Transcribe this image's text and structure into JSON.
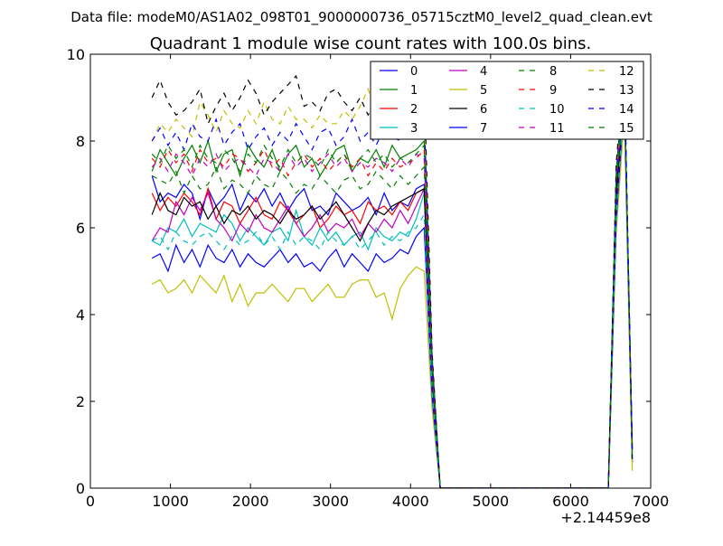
{
  "header": {
    "datafile_label": "Data file: modeM0/AS1A02_098T01_9000000736_05715cztM0_level2_quad_clean.evt"
  },
  "chart_data": {
    "type": "line",
    "title": "Quadrant 1 module wise count rates with 100.0s bins.",
    "xlabel": "",
    "ylabel": "",
    "x_offset_label": "+2.14459e8",
    "xlim": [
      0,
      7000
    ],
    "ylim": [
      0,
      10
    ],
    "x_ticks": [
      0,
      1000,
      2000,
      3000,
      4000,
      5000,
      6000,
      7000
    ],
    "y_ticks": [
      0,
      2,
      4,
      6,
      8,
      10
    ],
    "grid": false,
    "legend_position": "top-right",
    "legend_columns": 4,
    "x": [
      770,
      870,
      970,
      1070,
      1170,
      1270,
      1370,
      1470,
      1570,
      1670,
      1770,
      1870,
      1970,
      2070,
      2170,
      2270,
      2370,
      2470,
      2570,
      2670,
      2770,
      2870,
      2970,
      3070,
      3170,
      3270,
      3370,
      3470,
      3570,
      3670,
      3770,
      3870,
      3970,
      4070,
      4170,
      4270,
      4370,
      6470,
      6570,
      6670,
      6770
    ],
    "series": [
      {
        "name": "0",
        "color": "#0000ff",
        "style": "solid",
        "values": [
          7.2,
          6.6,
          6.8,
          6.7,
          7.0,
          6.8,
          6.2,
          6.9,
          6.5,
          6.7,
          7.0,
          6.4,
          6.8,
          6.6,
          6.9,
          6.5,
          6.8,
          6.4,
          6.7,
          6.9,
          6.4,
          6.5,
          6.3,
          6.8,
          6.6,
          6.4,
          6.5,
          6.7,
          6.3,
          6.8,
          6.4,
          6.6,
          6.5,
          6.9,
          7.0,
          2.5,
          0.0,
          0.0,
          6.8,
          9.2,
          1.0
        ]
      },
      {
        "name": "1",
        "color": "#008000",
        "style": "solid",
        "values": [
          7.3,
          7.8,
          7.5,
          7.2,
          7.6,
          7.9,
          7.5,
          8.0,
          7.3,
          7.7,
          7.8,
          7.2,
          7.9,
          7.6,
          7.4,
          7.8,
          7.3,
          7.7,
          7.9,
          7.4,
          7.6,
          7.2,
          7.5,
          7.8,
          7.9,
          7.3,
          7.6,
          7.5,
          7.8,
          7.4,
          7.9,
          7.6,
          7.7,
          7.8,
          8.0,
          2.8,
          0.0,
          0.0,
          7.1,
          9.4,
          0.9
        ]
      },
      {
        "name": "2",
        "color": "#ff0000",
        "style": "solid",
        "values": [
          6.8,
          6.4,
          6.7,
          6.5,
          6.8,
          6.6,
          6.3,
          6.9,
          6.2,
          6.6,
          6.5,
          6.1,
          6.4,
          6.7,
          6.3,
          6.2,
          6.6,
          6.4,
          6.1,
          6.3,
          6.5,
          6.0,
          6.2,
          6.5,
          6.3,
          6.4,
          6.1,
          6.6,
          6.4,
          6.5,
          6.3,
          6.6,
          6.4,
          6.8,
          6.9,
          2.4,
          0.0,
          0.0,
          6.6,
          9.1,
          0.8
        ]
      },
      {
        "name": "3",
        "color": "#00bfbf",
        "style": "solid",
        "values": [
          5.7,
          5.6,
          6.0,
          5.9,
          6.2,
          5.8,
          6.1,
          6.0,
          5.9,
          6.3,
          6.1,
          5.7,
          6.0,
          5.8,
          5.6,
          5.9,
          6.0,
          5.7,
          6.4,
          5.8,
          5.6,
          6.0,
          5.7,
          5.9,
          5.6,
          5.8,
          5.9,
          5.5,
          6.0,
          5.8,
          5.7,
          5.9,
          5.8,
          6.2,
          6.8,
          2.3,
          0.0,
          0.0,
          6.5,
          9.3,
          0.7
        ]
      },
      {
        "name": "4",
        "color": "#bf00bf",
        "style": "solid",
        "values": [
          5.7,
          6.0,
          5.9,
          6.6,
          6.3,
          6.7,
          6.4,
          6.8,
          6.2,
          6.0,
          5.7,
          6.1,
          5.9,
          6.3,
          6.0,
          5.9,
          6.2,
          6.5,
          6.1,
          5.8,
          6.0,
          6.3,
          5.9,
          6.1,
          6.0,
          6.2,
          5.8,
          6.1,
          5.9,
          6.2,
          6.0,
          6.4,
          6.1,
          6.5,
          6.9,
          2.2,
          0.0,
          0.0,
          6.4,
          9.0,
          0.6
        ]
      },
      {
        "name": "5",
        "color": "#bfbf00",
        "style": "solid",
        "values": [
          4.7,
          4.8,
          4.5,
          4.6,
          4.8,
          4.5,
          4.9,
          4.7,
          4.5,
          4.9,
          4.3,
          4.7,
          4.2,
          4.5,
          4.5,
          4.7,
          4.5,
          4.3,
          4.6,
          4.6,
          4.3,
          4.5,
          4.7,
          4.4,
          4.4,
          4.7,
          4.8,
          4.8,
          4.4,
          4.5,
          3.9,
          4.6,
          4.9,
          5.1,
          5.0,
          1.8,
          0.0,
          0.0,
          5.9,
          8.6,
          0.4
        ]
      },
      {
        "name": "6",
        "color": "#000000",
        "style": "solid",
        "values": [
          6.3,
          6.8,
          6.4,
          6.3,
          6.7,
          6.5,
          6.6,
          6.2,
          6.5,
          6.1,
          6.4,
          6.3,
          6.5,
          6.2,
          6.4,
          6.3,
          6.1,
          6.4,
          6.2,
          6.3,
          6.5,
          6.2,
          6.4,
          6.6,
          6.3,
          6.0,
          5.7,
          6.1,
          6.4,
          6.3,
          6.5,
          6.6,
          6.7,
          6.8,
          6.9,
          2.6,
          0.0,
          0.0,
          6.7,
          9.2,
          0.9
        ]
      },
      {
        "name": "7",
        "color": "#0000ff",
        "style": "solid",
        "values": [
          5.3,
          5.4,
          5.0,
          5.6,
          5.2,
          5.5,
          5.1,
          5.6,
          5.3,
          5.2,
          5.5,
          5.1,
          5.4,
          5.2,
          5.1,
          5.3,
          5.5,
          5.2,
          5.4,
          5.1,
          5.2,
          5.0,
          5.3,
          5.5,
          5.1,
          5.4,
          5.2,
          5.0,
          5.4,
          5.2,
          5.3,
          5.5,
          5.4,
          5.8,
          6.0,
          2.1,
          0.0,
          0.0,
          6.2,
          9.0,
          0.6
        ]
      },
      {
        "name": "8",
        "color": "#008000",
        "style": "dashed",
        "values": [
          7.2,
          7.1,
          7.0,
          7.3,
          6.8,
          7.2,
          6.9,
          7.0,
          7.4,
          6.9,
          7.1,
          7.0,
          6.8,
          7.2,
          7.0,
          6.9,
          7.3,
          7.1,
          6.8,
          7.0,
          6.9,
          7.2,
          7.0,
          6.8,
          7.1,
          7.2,
          6.9,
          7.0,
          7.3,
          7.1,
          6.9,
          7.2,
          7.0,
          7.2,
          7.4,
          2.7,
          0.0,
          0.0,
          7.0,
          9.3,
          0.8
        ]
      },
      {
        "name": "9",
        "color": "#ff0000",
        "style": "dashed",
        "values": [
          7.6,
          7.4,
          7.8,
          7.5,
          7.7,
          7.3,
          7.8,
          7.5,
          7.6,
          7.4,
          7.7,
          7.6,
          7.3,
          7.5,
          7.8,
          7.4,
          7.6,
          7.2,
          7.5,
          7.7,
          7.4,
          7.6,
          7.3,
          7.5,
          7.7,
          7.4,
          7.6,
          7.2,
          7.5,
          7.3,
          7.6,
          7.4,
          7.5,
          7.6,
          7.8,
          2.9,
          0.0,
          0.0,
          7.2,
          9.4,
          0.9
        ]
      },
      {
        "name": "10",
        "color": "#00bfbf",
        "style": "dashed",
        "values": [
          5.7,
          5.8,
          5.5,
          5.9,
          5.7,
          5.6,
          5.8,
          5.9,
          5.7,
          5.5,
          5.8,
          5.6,
          5.7,
          5.9,
          5.6,
          5.8,
          5.5,
          5.9,
          5.6,
          5.8,
          5.7,
          5.5,
          5.9,
          5.7,
          5.6,
          5.8,
          5.5,
          5.7,
          5.9,
          5.6,
          5.8,
          5.7,
          5.9,
          6.0,
          6.3,
          2.2,
          0.0,
          0.0,
          6.3,
          9.1,
          0.7
        ]
      },
      {
        "name": "11",
        "color": "#bf00bf",
        "style": "dashed",
        "values": [
          7.4,
          7.6,
          7.3,
          7.7,
          7.5,
          7.2,
          7.6,
          7.4,
          7.7,
          7.3,
          7.5,
          7.6,
          7.4,
          7.2,
          7.6,
          7.5,
          7.3,
          7.7,
          7.4,
          7.6,
          7.3,
          7.5,
          7.7,
          7.4,
          7.6,
          7.3,
          7.5,
          7.4,
          7.6,
          7.5,
          7.3,
          7.6,
          7.4,
          7.7,
          7.6,
          2.8,
          0.0,
          0.0,
          7.1,
          9.2,
          0.9
        ]
      },
      {
        "name": "12",
        "color": "#bfbf00",
        "style": "dashed",
        "values": [
          8.0,
          8.4,
          8.2,
          8.5,
          8.3,
          8.1,
          8.9,
          8.6,
          8.2,
          8.7,
          8.4,
          8.3,
          8.7,
          8.4,
          8.9,
          8.5,
          8.4,
          8.8,
          8.5,
          8.5,
          8.3,
          8.6,
          8.4,
          8.4,
          8.7,
          8.5,
          8.8,
          9.2,
          8.6,
          8.9,
          8.4,
          8.7,
          8.5,
          8.8,
          9.0,
          3.0,
          0.0,
          0.0,
          7.4,
          9.5,
          0.5
        ]
      },
      {
        "name": "13",
        "color": "#000000",
        "style": "dashed",
        "values": [
          9.0,
          9.4,
          8.9,
          8.6,
          8.7,
          8.9,
          9.2,
          8.4,
          8.8,
          9.1,
          8.7,
          9.0,
          9.4,
          9.1,
          8.6,
          8.9,
          9.1,
          9.3,
          9.5,
          8.8,
          8.9,
          8.7,
          9.1,
          9.2,
          8.9,
          8.7,
          9.0,
          8.6,
          8.9,
          9.1,
          8.8,
          8.9,
          8.7,
          8.9,
          9.3,
          3.1,
          0.0,
          0.0,
          7.5,
          9.8,
          0.6
        ]
      },
      {
        "name": "14",
        "color": "#0000ff",
        "style": "dashed",
        "values": [
          8.0,
          8.3,
          7.9,
          8.2,
          7.8,
          8.4,
          8.1,
          8.0,
          8.5,
          7.9,
          8.2,
          8.4,
          7.8,
          8.1,
          8.3,
          7.9,
          8.2,
          8.0,
          8.4,
          8.1,
          7.8,
          8.2,
          8.3,
          7.9,
          8.1,
          8.5,
          8.0,
          8.2,
          7.9,
          8.3,
          8.1,
          8.0,
          8.4,
          8.2,
          8.6,
          3.0,
          0.0,
          0.0,
          7.3,
          9.6,
          0.8
        ]
      },
      {
        "name": "15",
        "color": "#008000",
        "style": "dashed",
        "values": [
          7.7,
          7.5,
          7.9,
          7.6,
          7.8,
          7.4,
          7.9,
          7.6,
          7.5,
          7.8,
          7.6,
          7.3,
          7.7,
          7.5,
          7.9,
          7.6,
          7.4,
          7.8,
          7.5,
          7.7,
          7.6,
          7.4,
          7.8,
          7.5,
          7.7,
          7.3,
          7.6,
          7.8,
          7.5,
          7.7,
          7.4,
          7.6,
          7.5,
          7.7,
          7.9,
          2.9,
          0.0,
          0.0,
          7.2,
          9.4,
          0.7
        ]
      }
    ]
  }
}
